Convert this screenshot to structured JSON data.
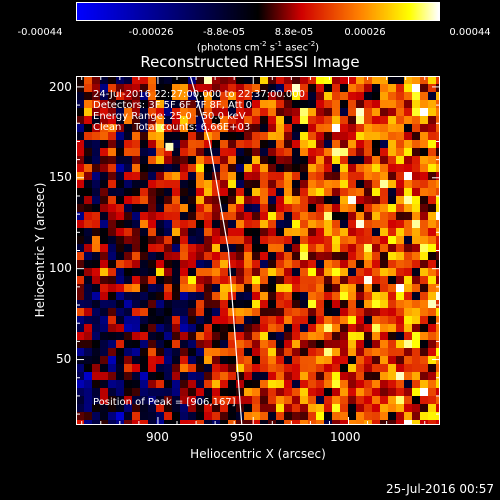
{
  "colorbar": {
    "tick_labels": [
      "-0.00044",
      "-0.00026",
      "-8.8e-05",
      "8.8e-05",
      "0.00026",
      "0.00044"
    ],
    "tick_values": [
      -0.00044,
      -0.00026,
      -8.8e-05,
      8.8e-05,
      0.00026,
      0.00044
    ],
    "range": [
      -0.00044,
      0.00044
    ],
    "units_prefix": "(photons cm",
    "units_exp1": "-2",
    "units_mid1": " s",
    "units_exp2": "-1",
    "units_mid2": " asec",
    "units_exp3": "-2",
    "units_suffix": ")",
    "colors": [
      "#0000ff",
      "#000000",
      "#d00000",
      "#ff8000",
      "#ffff00",
      "#ffffff"
    ]
  },
  "annotations": {
    "time_range": "24-Jul-2016 22:27:00.000 to 22:37:00.000",
    "detectors": "Detectors: 3F 5F 6F 7F 8F, Att 0",
    "energy_range": "Energy Range: 25.0 - 50.0 keV",
    "method": "Clean    Total counts: 6.66E+03",
    "peak_position": "Position of Peak = [906,167]"
  },
  "footer": {
    "date": "25-Jul-2016 00:57"
  },
  "chart_data": {
    "type": "heatmap",
    "title": "Reconstructed RHESSI Image",
    "xlabel": "Heliocentric X (arcsec)",
    "ylabel": "Heliocentric Y (arcsec)",
    "xlim": [
      857,
      1048
    ],
    "ylim": [
      14,
      206
    ],
    "x_ticks": [
      900,
      950,
      1000
    ],
    "y_ticks": [
      50,
      100,
      150,
      200
    ],
    "value_range": [
      -0.00044,
      0.00044
    ],
    "colormap": "blue-black-red-yellow-white",
    "peak": {
      "x": 906,
      "y": 167
    },
    "limb_line": [
      [
        917,
        206
      ],
      [
        927,
        170
      ],
      [
        937,
        110
      ],
      [
        944,
        14
      ]
    ]
  }
}
